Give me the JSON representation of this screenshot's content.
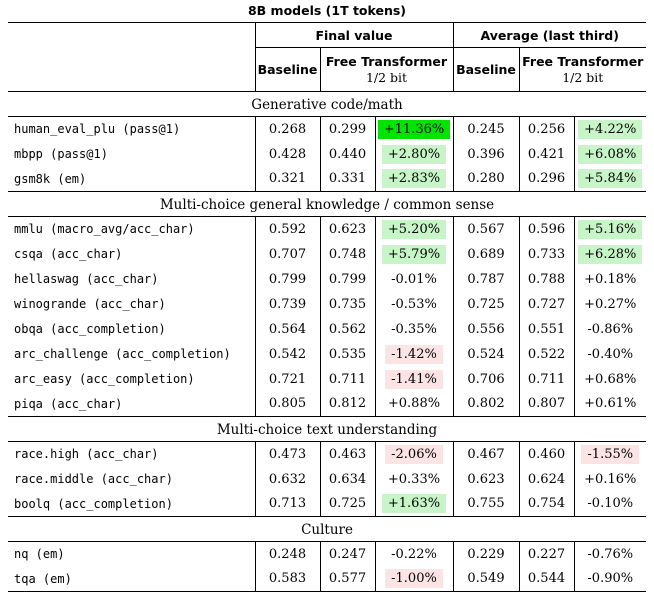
{
  "title": "8B models (1T tokens)",
  "header": {
    "group_final": "Final value",
    "group_average": "Average (last third)",
    "baseline": "Baseline",
    "free_transformer": "Free Transformer",
    "half_bit": "1/2 bit"
  },
  "colors": {
    "bright_green": "#00e400",
    "light_green": "#c8f5c8",
    "light_red": "#fce4e4"
  },
  "sections": [
    {
      "label": "Generative code/math",
      "rows": [
        {
          "name": "human_eval_plu (pass@1)",
          "fv": [
            "0.268",
            "0.299",
            "+11.36%",
            "bright_green"
          ],
          "avg": [
            "0.245",
            "0.256",
            "+4.22%",
            "light_green"
          ]
        },
        {
          "name": "mbpp (pass@1)",
          "fv": [
            "0.428",
            "0.440",
            "+2.80%",
            "light_green"
          ],
          "avg": [
            "0.396",
            "0.421",
            "+6.08%",
            "light_green"
          ]
        },
        {
          "name": "gsm8k (em)",
          "fv": [
            "0.321",
            "0.331",
            "+2.83%",
            "light_green"
          ],
          "avg": [
            "0.280",
            "0.296",
            "+5.84%",
            "light_green"
          ]
        }
      ]
    },
    {
      "label": "Multi-choice general knowledge / common sense",
      "rows": [
        {
          "name": "mmlu (macro_avg/acc_char)",
          "fv": [
            "0.592",
            "0.623",
            "+5.20%",
            "light_green"
          ],
          "avg": [
            "0.567",
            "0.596",
            "+5.16%",
            "light_green"
          ]
        },
        {
          "name": "csqa (acc_char)",
          "fv": [
            "0.707",
            "0.748",
            "+5.79%",
            "light_green"
          ],
          "avg": [
            "0.689",
            "0.733",
            "+6.28%",
            "light_green"
          ]
        },
        {
          "name": "hellaswag (acc_char)",
          "fv": [
            "0.799",
            "0.799",
            "-0.01%",
            ""
          ],
          "avg": [
            "0.787",
            "0.788",
            "+0.18%",
            ""
          ]
        },
        {
          "name": "winogrande (acc_char)",
          "fv": [
            "0.739",
            "0.735",
            "-0.53%",
            ""
          ],
          "avg": [
            "0.725",
            "0.727",
            "+0.27%",
            ""
          ]
        },
        {
          "name": "obqa (acc_completion)",
          "fv": [
            "0.564",
            "0.562",
            "-0.35%",
            ""
          ],
          "avg": [
            "0.556",
            "0.551",
            "-0.86%",
            ""
          ]
        },
        {
          "name": "arc_challenge (acc_completion)",
          "fv": [
            "0.542",
            "0.535",
            "-1.42%",
            "light_red"
          ],
          "avg": [
            "0.524",
            "0.522",
            "-0.40%",
            ""
          ]
        },
        {
          "name": "arc_easy (acc_completion)",
          "fv": [
            "0.721",
            "0.711",
            "-1.41%",
            "light_red"
          ],
          "avg": [
            "0.706",
            "0.711",
            "+0.68%",
            ""
          ]
        },
        {
          "name": "piqa (acc_char)",
          "fv": [
            "0.805",
            "0.812",
            "+0.88%",
            ""
          ],
          "avg": [
            "0.802",
            "0.807",
            "+0.61%",
            ""
          ]
        }
      ]
    },
    {
      "label": "Multi-choice text understanding",
      "rows": [
        {
          "name": "race.high (acc_char)",
          "fv": [
            "0.473",
            "0.463",
            "-2.06%",
            "light_red"
          ],
          "avg": [
            "0.467",
            "0.460",
            "-1.55%",
            "light_red"
          ]
        },
        {
          "name": "race.middle (acc_char)",
          "fv": [
            "0.632",
            "0.634",
            "+0.33%",
            ""
          ],
          "avg": [
            "0.623",
            "0.624",
            "+0.16%",
            ""
          ]
        },
        {
          "name": "boolq (acc_completion)",
          "fv": [
            "0.713",
            "0.725",
            "+1.63%",
            "light_green"
          ],
          "avg": [
            "0.755",
            "0.754",
            "-0.10%",
            ""
          ]
        }
      ]
    },
    {
      "label": "Culture",
      "rows": [
        {
          "name": "nq (em)",
          "fv": [
            "0.248",
            "0.247",
            "-0.22%",
            ""
          ],
          "avg": [
            "0.229",
            "0.227",
            "-0.76%",
            ""
          ]
        },
        {
          "name": "tqa (em)",
          "fv": [
            "0.583",
            "0.577",
            "-1.00%",
            "light_red"
          ],
          "avg": [
            "0.549",
            "0.544",
            "-0.90%",
            ""
          ]
        }
      ]
    }
  ]
}
